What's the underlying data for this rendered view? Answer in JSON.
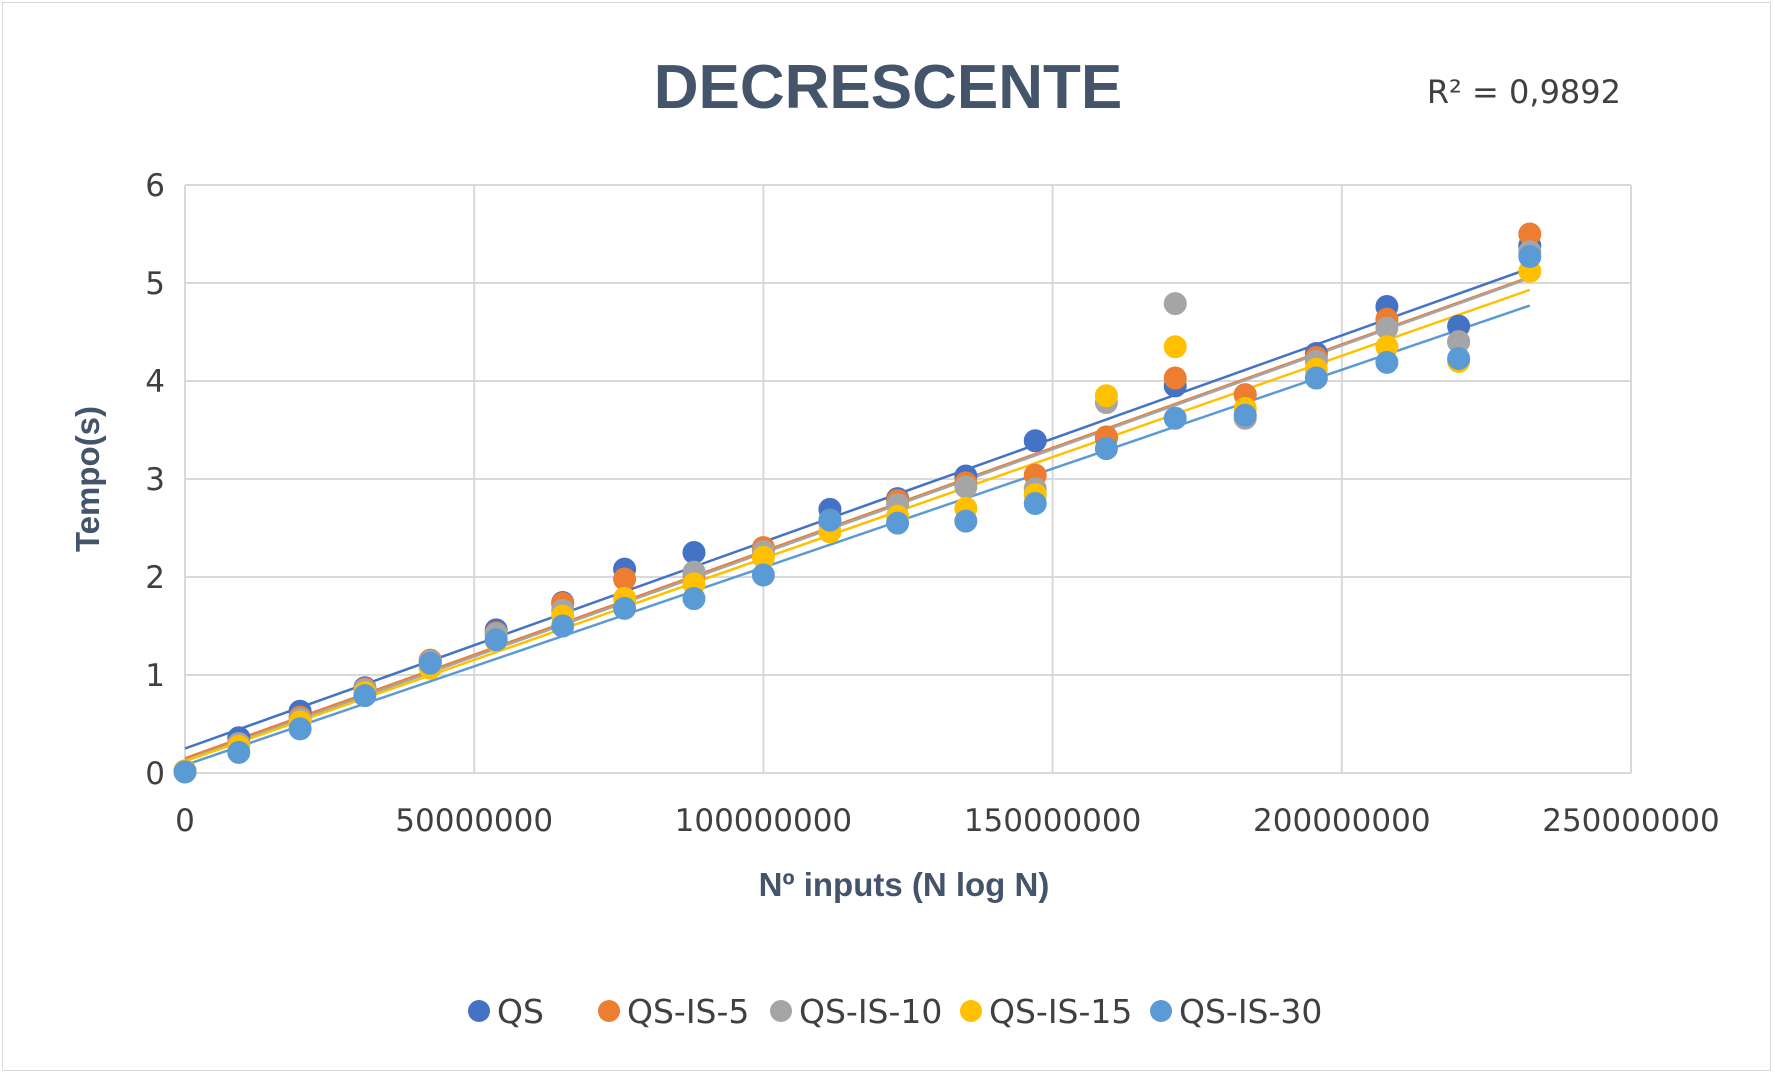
{
  "chart_data": {
    "type": "scatter",
    "title": "DECRESCENTE",
    "annotation": "R² = 0,9892",
    "xlabel": "Nº inputs (N log N)",
    "ylabel": "Tempo(s)",
    "xlim": [
      0,
      250000000
    ],
    "ylim": [
      0,
      6
    ],
    "x_ticks": [
      "0",
      "50000000",
      "100000000",
      "150000000",
      "200000000",
      "250000000"
    ],
    "y_ticks": [
      "0",
      "1",
      "2",
      "3",
      "4",
      "5",
      "6"
    ],
    "grid": true,
    "legend_position": "bottom",
    "x": [
      0,
      9300000,
      19900000,
      31100000,
      42400000,
      53800000,
      65300000,
      76000000,
      88000000,
      100000000,
      111500000,
      123200000,
      135000000,
      147000000,
      159300000,
      171200000,
      183300000,
      195600000,
      207800000,
      220200000,
      232500000
    ],
    "series": [
      {
        "name": "QS",
        "color": "#4472c4",
        "values": [
          0.02,
          0.36,
          0.63,
          0.87,
          1.15,
          1.46,
          1.74,
          2.08,
          2.25,
          2.28,
          2.69,
          2.8,
          3.03,
          3.39,
          3.42,
          3.95,
          3.86,
          4.28,
          4.76,
          4.56,
          5.38
        ],
        "trend": [
          0.25,
          5.15
        ]
      },
      {
        "name": "QS-IS-5",
        "color": "#ed7d31",
        "values": [
          0.02,
          0.3,
          0.57,
          0.86,
          1.15,
          1.43,
          1.73,
          1.98,
          2.02,
          2.3,
          2.58,
          2.78,
          2.96,
          3.04,
          3.43,
          4.03,
          3.86,
          4.24,
          4.63,
          4.4,
          5.5
        ],
        "trend": [
          0.15,
          5.06
        ]
      },
      {
        "name": "QS-IS-10",
        "color": "#a5a5a5",
        "values": [
          0.02,
          0.3,
          0.55,
          0.85,
          1.14,
          1.42,
          1.66,
          1.78,
          2.05,
          2.26,
          2.55,
          2.74,
          2.92,
          2.9,
          3.78,
          4.79,
          3.62,
          4.2,
          4.54,
          4.4,
          5.32
        ],
        "trend": [
          0.13,
          5.05
        ]
      },
      {
        "name": "QS-IS-15",
        "color": "#ffc000",
        "values": [
          0.02,
          0.27,
          0.52,
          0.82,
          1.07,
          1.35,
          1.6,
          1.78,
          1.93,
          2.2,
          2.46,
          2.62,
          2.7,
          2.84,
          3.85,
          4.35,
          3.72,
          4.12,
          4.35,
          4.2,
          5.12
        ],
        "trend": [
          0.12,
          4.93
        ]
      },
      {
        "name": "QS-IS-30",
        "color": "#5b9bd5",
        "values": [
          0.01,
          0.21,
          0.45,
          0.79,
          1.12,
          1.36,
          1.5,
          1.68,
          1.78,
          2.02,
          2.58,
          2.55,
          2.57,
          2.75,
          3.31,
          3.62,
          3.65,
          4.03,
          4.19,
          4.23,
          5.27
        ],
        "trend": [
          0.08,
          4.77
        ]
      }
    ]
  }
}
